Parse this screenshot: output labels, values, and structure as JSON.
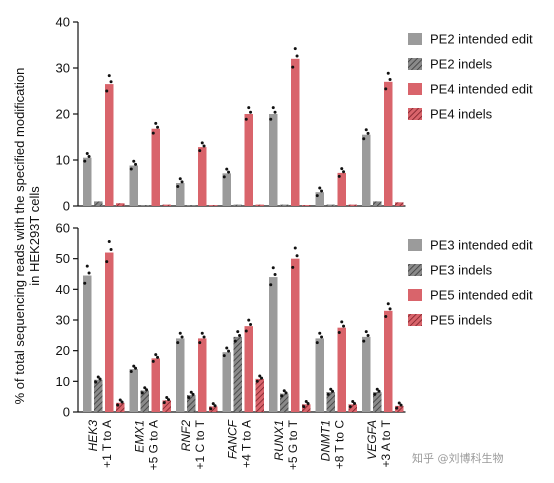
{
  "chart_data": [
    {
      "type": "bar",
      "ylim": [
        0,
        40
      ],
      "yticks": [
        0,
        10,
        20,
        30,
        40
      ],
      "categories": [
        "HEK3|+1 T to A",
        "EMX1|+5 G to A",
        "RNF2|+1 C to T",
        "FANCF|+4 T to A",
        "RUNX1|+5 G to T",
        "DNMT1|+8 T to C",
        "VEGFA|+3 A to T"
      ],
      "series": [
        {
          "name": "PE2 intended edit",
          "color": "#9b9b9b",
          "hatch": false,
          "values": [
            10.5,
            8.8,
            5.0,
            7.1,
            20.0,
            3.0,
            15.5
          ]
        },
        {
          "name": "PE2 indels",
          "color": "#6e6e6e",
          "hatch": true,
          "values": [
            1.0,
            0.2,
            0.2,
            0.3,
            0.3,
            0.3,
            1.0
          ]
        },
        {
          "name": "PE4 intended edit",
          "color": "#d9646b",
          "hatch": false,
          "values": [
            26.5,
            16.8,
            12.8,
            20.0,
            32.0,
            7.2,
            27.0
          ]
        },
        {
          "name": "PE4 indels",
          "color": "#b94049",
          "hatch": true,
          "values": [
            0.6,
            0.3,
            0.2,
            0.3,
            0.2,
            0.3,
            0.8
          ]
        }
      ]
    },
    {
      "type": "bar",
      "ylim": [
        0,
        60
      ],
      "yticks": [
        0,
        10,
        20,
        30,
        40,
        50,
        60
      ],
      "categories": [
        "HEK3|+1 T to A",
        "EMX1|+5 G to A",
        "RNF2|+1 C to T",
        "FANCF|+4 T to A",
        "RUNX1|+5 G to T",
        "DNMT1|+8 T to C",
        "VEGFA|+3 A to T"
      ],
      "series": [
        {
          "name": "PE3 intended edit",
          "color": "#9b9b9b",
          "hatch": false,
          "values": [
            44.5,
            14.0,
            24.0,
            19.5,
            44.0,
            24.0,
            24.5
          ]
        },
        {
          "name": "PE3 indels",
          "color": "#6e6e6e",
          "hatch": true,
          "values": [
            10.5,
            7.0,
            5.5,
            24.5,
            6.0,
            6.5,
            6.5
          ]
        },
        {
          "name": "PE5 intended edit",
          "color": "#d9646b",
          "hatch": false,
          "values": [
            52.0,
            17.5,
            24.0,
            28.0,
            50.0,
            27.5,
            33.0
          ]
        },
        {
          "name": "PE5 indels",
          "color": "#b94049",
          "hatch": true,
          "values": [
            3.0,
            3.8,
            1.8,
            10.8,
            2.5,
            2.5,
            2.0
          ]
        }
      ]
    }
  ],
  "ylabel": "% of total sequencing reads with the specified modification in HEK293T cells",
  "ylabel_lines": [
    "% of total sequencing reads with the specified modification",
    "in HEK293T cells"
  ],
  "watermark": "知乎 @刘博科生物"
}
